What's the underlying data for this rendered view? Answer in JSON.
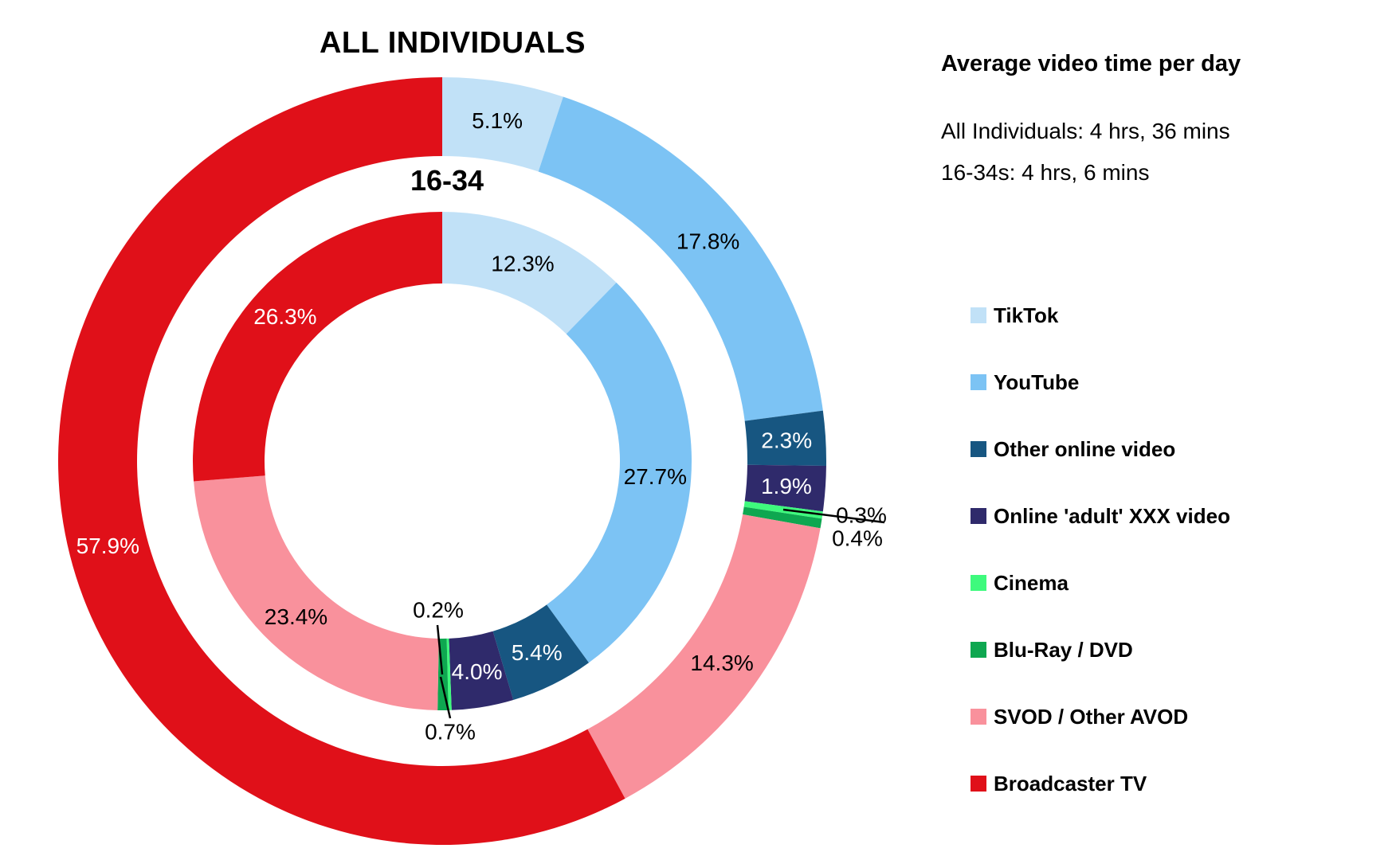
{
  "side_panel": {
    "heading": "Average video time per day",
    "lines": [
      "All Individuals: 4 hrs, 36 mins",
      "16-34s: 4 hrs, 6 mins"
    ]
  },
  "chart_data": {
    "type": "pie",
    "subtype": "nested-donut",
    "direction": "clockwise",
    "start_angle_deg": 0,
    "legend_position": "right",
    "categories": [
      "TikTok",
      "YouTube",
      "Other online video",
      "Online 'adult' XXX video",
      "Cinema",
      "Blu-Ray / DVD",
      "SVOD / Other AVOD",
      "Broadcaster TV"
    ],
    "colors": [
      "#C1E1F7",
      "#7CC3F4",
      "#175681",
      "#2F2A6B",
      "#3EFA7D",
      "#0EA750",
      "#F9919C",
      "#E01019"
    ],
    "value_label_colors": [
      "#000000",
      "#000000",
      "#ffffff",
      "#ffffff",
      "#000000",
      "#000000",
      "#000000",
      "#ffffff"
    ],
    "rings": [
      {
        "name": "ALL INDIVIDUALS",
        "position": "outer",
        "values": [
          5.1,
          17.8,
          2.3,
          1.9,
          0.3,
          0.4,
          14.3,
          57.9
        ],
        "labels": [
          "5.1%",
          "17.8%",
          "2.3%",
          "1.9%",
          "0.3%",
          "0.4%",
          "14.3%",
          "57.9%"
        ]
      },
      {
        "name": "16-34",
        "position": "inner",
        "values": [
          12.3,
          27.7,
          5.4,
          4.0,
          0.2,
          0.7,
          23.4,
          26.3
        ],
        "labels": [
          "12.3%",
          "27.7%",
          "5.4%",
          "4.0%",
          "0.2%",
          "0.7%",
          "23.4%",
          "26.3%"
        ]
      }
    ]
  }
}
